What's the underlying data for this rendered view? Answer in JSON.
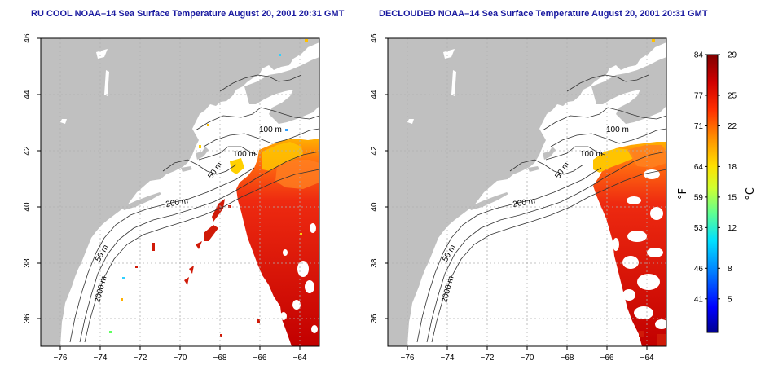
{
  "titles": {
    "left": "RU COOL NOAA–14 Sea Surface Temperature August 20, 2001 20:31 GMT",
    "right": "DECLOUDED NOAA–14 Sea Surface Temperature August 20, 2001 20:31 GMT"
  },
  "map": {
    "lon_range": [
      -77,
      -63
    ],
    "lat_range": [
      35,
      46
    ],
    "lon_ticks": [
      -76,
      -74,
      -72,
      -70,
      -68,
      -66,
      -64
    ],
    "lat_ticks": [
      36,
      38,
      40,
      42,
      44,
      46
    ],
    "lon_tick_labels": [
      "−76",
      "−74",
      "−72",
      "−70",
      "−68",
      "−66",
      "−64"
    ],
    "lat_tick_labels": [
      "36",
      "38",
      "40",
      "42",
      "44",
      "46"
    ],
    "land_color": "#c0c0c0",
    "ocean_color": "#ffffff",
    "grid": "dotted"
  },
  "contour_labels": {
    "left": [
      "100 m",
      "100 m",
      "50 m",
      "200 m",
      "50 m",
      "2000 m"
    ],
    "right": [
      "100 m",
      "100 m",
      "50 m",
      "200 m",
      "50 m",
      "2000 m"
    ]
  },
  "colorbar": {
    "unit_f": "°F",
    "unit_c": "°C",
    "fahrenheit_labels": [
      "84",
      "77",
      "71",
      "64",
      "59",
      "53",
      "46",
      "41"
    ],
    "celsius_labels": [
      "29",
      "25",
      "22",
      "18",
      "15",
      "12",
      "8",
      "5"
    ],
    "fahrenheit_values": [
      84,
      77,
      71,
      64,
      59,
      53,
      46,
      41
    ],
    "celsius_values": [
      29,
      25,
      22,
      18,
      15,
      12,
      8,
      5
    ],
    "range_c": [
      1.7,
      29
    ],
    "colors": [
      "#00008f",
      "#0000ff",
      "#0080ff",
      "#00e0ff",
      "#60ff90",
      "#d0ff30",
      "#ffe000",
      "#ff9000",
      "#ff3000",
      "#d00000",
      "#800000"
    ]
  }
}
